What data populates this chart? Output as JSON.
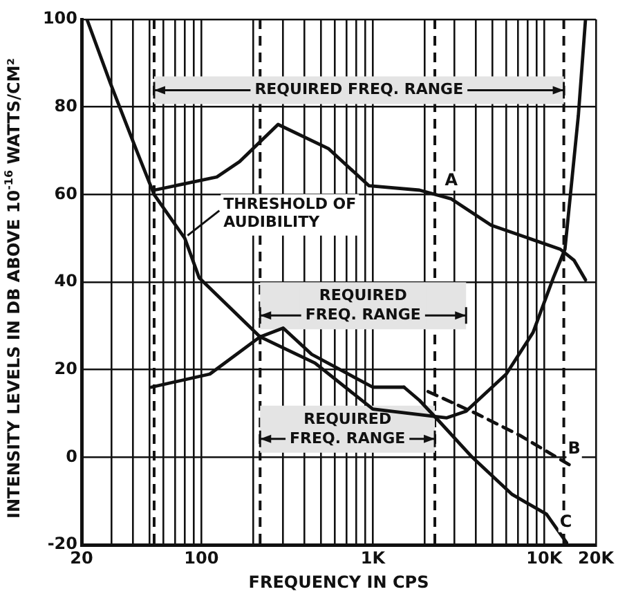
{
  "chart_data": {
    "type": "line",
    "xlabel": "FREQUENCY IN CPS",
    "ylabel": "INTENSITY LEVELS IN DB ABOVE 10$^{-16}$ WATTS/CM²",
    "log": "x",
    "xlim": [
      20,
      20000
    ],
    "ylim": [
      -20,
      100
    ],
    "xticks": [
      20,
      {
        "value": 30,
        "label": null
      },
      {
        "value": 40,
        "label": null
      },
      {
        "value": 50,
        "label": null
      },
      {
        "value": 60,
        "label": null
      },
      {
        "value": 70,
        "label": null
      },
      {
        "value": 80,
        "label": null
      },
      {
        "value": 90,
        "label": null
      },
      100,
      {
        "value": 200,
        "label": null
      },
      {
        "value": 300,
        "label": null
      },
      {
        "value": 400,
        "label": null
      },
      {
        "value": 500,
        "label": null
      },
      {
        "value": 600,
        "label": null
      },
      {
        "value": 700,
        "label": null
      },
      {
        "value": 800,
        "label": null
      },
      {
        "value": 900,
        "label": null
      },
      {
        "value": 1000,
        "label": "1K"
      },
      {
        "value": 2000,
        "label": null
      },
      {
        "value": 3000,
        "label": null
      },
      {
        "value": 4000,
        "label": null
      },
      {
        "value": 5000,
        "label": null
      },
      {
        "value": 6000,
        "label": null
      },
      {
        "value": 7000,
        "label": null
      },
      {
        "value": 8000,
        "label": null
      },
      {
        "value": 9000,
        "label": null
      },
      {
        "value": 10000,
        "label": "10K"
      },
      {
        "value": 20000,
        "label": "20K"
      }
    ],
    "yticks": [
      -20,
      0,
      20,
      40,
      60,
      80,
      100
    ],
    "grid": true,
    "series": [
      {
        "name": "A",
        "color": "#111111",
        "x": [
          53,
          123,
          167,
          280,
          550,
          950,
          1870,
          2870,
          4900,
          12400,
          14900,
          17400
        ],
        "values": [
          61,
          64,
          67.5,
          76,
          70.5,
          62,
          61,
          59,
          53,
          47.5,
          45,
          40.5
        ]
      },
      {
        "color": "#111111",
        "x": [
          21.5,
          29.4,
          42.4,
          53,
          80,
          97,
          220,
          460,
          1000,
          2700,
          3500,
          6000,
          8600,
          11300,
          13200,
          15800,
          17400
        ],
        "values": [
          100,
          85.5,
          69.5,
          60,
          50,
          41,
          27.5,
          21.5,
          11,
          9,
          10.5,
          19,
          28.5,
          41,
          47.5,
          78,
          100
        ]
      },
      {
        "color": "#111111",
        "x": [
          51,
          112,
          220,
          300,
          440,
          1000,
          1520
        ],
        "values": [
          16,
          19,
          27.5,
          29.5,
          23.5,
          16,
          16
        ]
      },
      {
        "name": "B",
        "color": "#111111",
        "line_style": "dashed",
        "x": [
          2100,
          4000,
          7200,
          14400
        ],
        "values": [
          15,
          10,
          5,
          -2
        ]
      },
      {
        "name": "C",
        "color": "#111111",
        "x": [
          1520,
          1870,
          2400,
          3800,
          6500,
          10300,
          13500
        ],
        "values": [
          16,
          13,
          8.5,
          0,
          -8.5,
          -13,
          -19.5
        ]
      }
    ],
    "ref_lines": [
      {
        "axis": "x",
        "value": 53,
        "line_style": "dashed"
      },
      {
        "axis": "x",
        "value": 220,
        "line_style": "dashed"
      },
      {
        "axis": "x",
        "value": 2300,
        "line_style": "dashed"
      },
      {
        "axis": "x",
        "value": 13000,
        "line_style": "dashed"
      }
    ],
    "bands": [
      {
        "axis": "x",
        "from": 53,
        "to": 13000,
        "label": "REQUIRED FREQ. RANGE",
        "color": "#e4e4e4"
      },
      {
        "axis": "x",
        "from": 220,
        "to": 3500,
        "label": "REQUIRED FREQ. RANGE",
        "color": "#e4e4e4"
      },
      {
        "axis": "x",
        "from": 220,
        "to": 2300,
        "label": "REQUIRED FREQ. RANGE",
        "color": "#e4e4e4"
      }
    ],
    "annotations": [
      {
        "text": "THRESHOLD OF AUDIBILITY",
        "x": 80,
        "y": 50
      }
    ]
  }
}
